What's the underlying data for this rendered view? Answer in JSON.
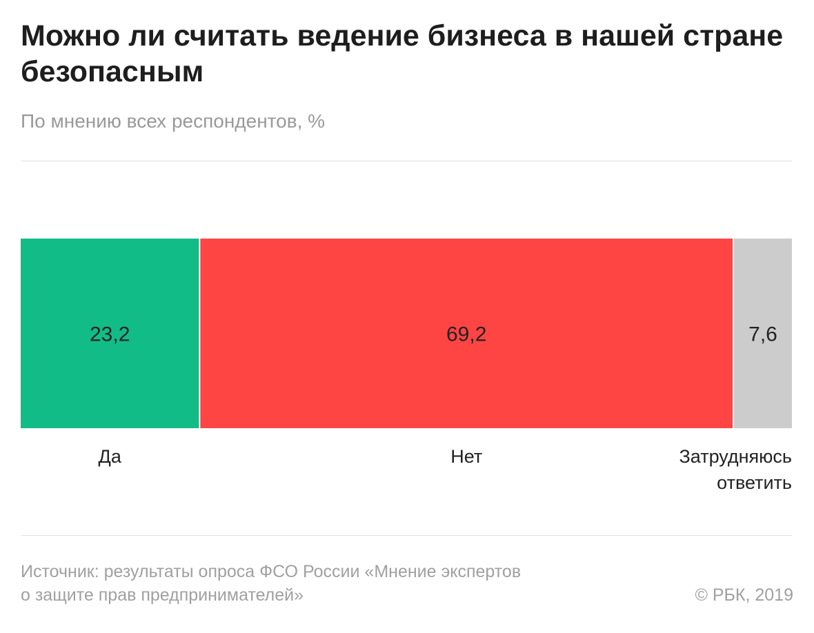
{
  "title": "Можно ли считать ведение бизнеса в нашей стране безопасным",
  "subtitle": "По мнению всех респондентов, %",
  "source_line1": "Источник: результаты опроса ФСО России «Мнение экспертов",
  "source_line2": "о защите прав предпринимателей»",
  "copyright": "© РБК, 2019",
  "chart_data": {
    "type": "bar",
    "stacked": true,
    "orientation": "horizontal",
    "categories": [
      "Да",
      "Нет",
      "Затрудняюсь ответить"
    ],
    "values": [
      23.2,
      69.2,
      7.6
    ],
    "value_labels": [
      "23,2",
      "69,2",
      "7,6"
    ],
    "label_lines": [
      [
        "Да"
      ],
      [
        "Нет"
      ],
      [
        "Затрудняюсь",
        "ответить"
      ]
    ],
    "colors": [
      "#12bc87",
      "#ff4444",
      "#cccccc"
    ],
    "xlim": [
      0,
      100
    ],
    "grid": false
  }
}
